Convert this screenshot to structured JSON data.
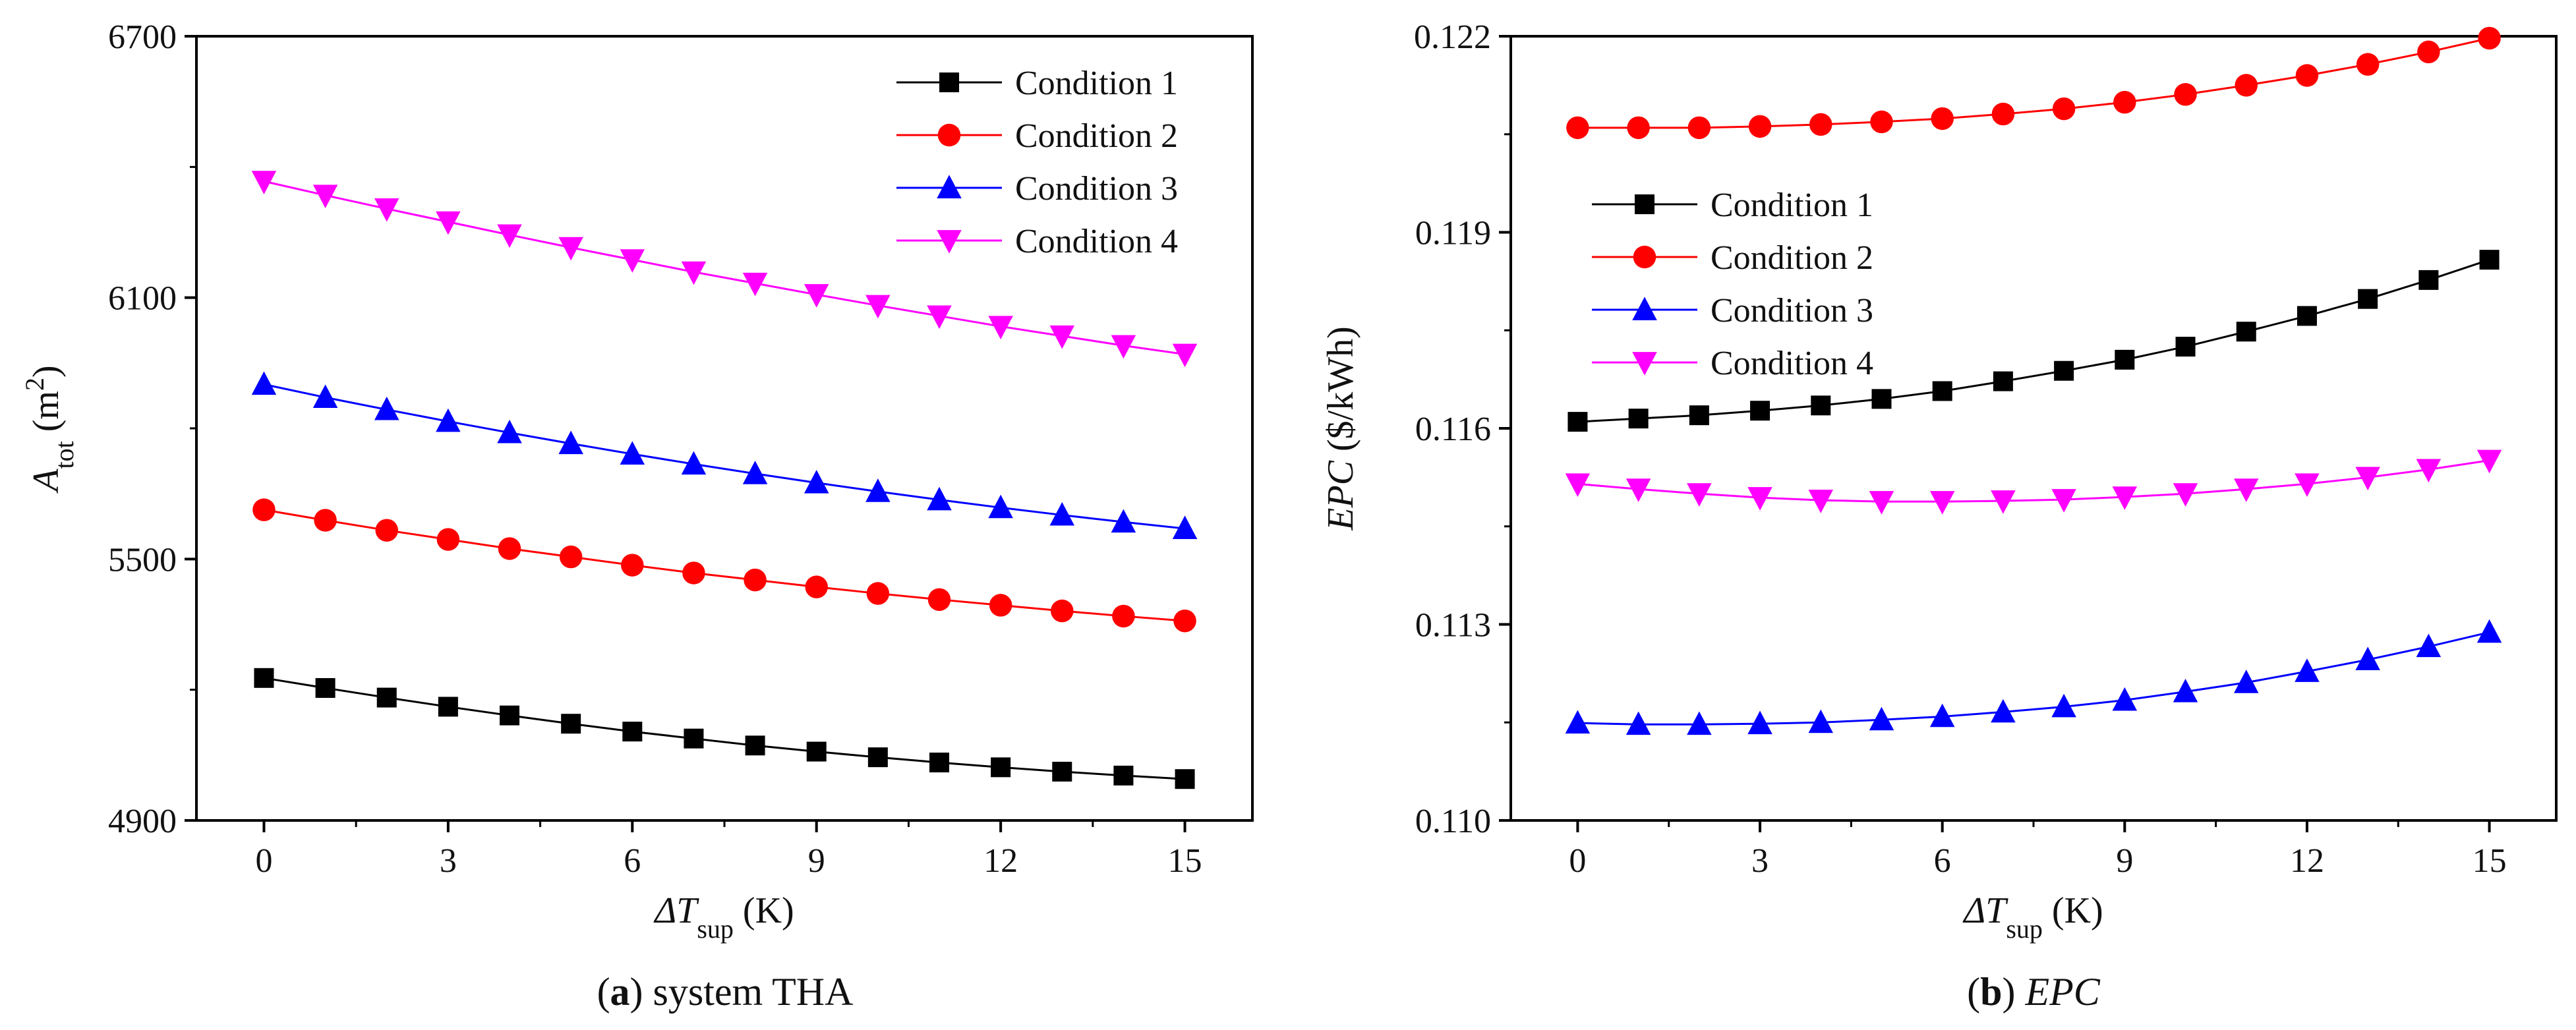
{
  "chart_data": [
    {
      "type": "line",
      "panel": "a",
      "caption": {
        "letter": "a",
        "text": " system THA"
      },
      "xlabel": {
        "main": "ΔT",
        "sub": "sup",
        "unit": " (K)"
      },
      "ylabel": {
        "main": "A",
        "sub": "tot",
        "unit": " (m",
        "sup": "2",
        "close": ")"
      },
      "xlim": [
        -1.1,
        16.1
      ],
      "ylim": [
        4900,
        6700
      ],
      "xticks": [
        0,
        3,
        6,
        9,
        12,
        15
      ],
      "yticks": [
        4900,
        5500,
        6100,
        6700
      ],
      "x": [
        0,
        1,
        2,
        3,
        4,
        5,
        6,
        7,
        8,
        9,
        10,
        11,
        12,
        13,
        14,
        15
      ],
      "legend_position": "top-right",
      "series": [
        {
          "name": "Condition 1",
          "color": "#000000",
          "marker": "square",
          "values": [
            5227,
            5204,
            5182,
            5161,
            5141,
            5122,
            5104,
            5088,
            5072,
            5058,
            5045,
            5033,
            5022,
            5012,
            5003,
            4995
          ]
        },
        {
          "name": "Condition 2",
          "color": "#ff0000",
          "marker": "circle",
          "values": [
            5613,
            5589,
            5566,
            5545,
            5524,
            5505,
            5486,
            5468,
            5452,
            5436,
            5421,
            5407,
            5394,
            5381,
            5369,
            5358
          ]
        },
        {
          "name": "Condition 3",
          "color": "#0000ff",
          "marker": "triangle-up",
          "values": [
            5901,
            5871,
            5843,
            5816,
            5790,
            5765,
            5741,
            5718,
            5696,
            5675,
            5655,
            5636,
            5618,
            5601,
            5585,
            5570
          ]
        },
        {
          "name": "Condition 4",
          "color": "#ff00ff",
          "marker": "triangle-down",
          "values": [
            6367,
            6335,
            6304,
            6274,
            6244,
            6215,
            6187,
            6159,
            6133,
            6107,
            6082,
            6058,
            6034,
            6012,
            5990,
            5970
          ]
        }
      ]
    },
    {
      "type": "line",
      "panel": "b",
      "caption": {
        "letter": "b",
        "text": " EPC"
      },
      "xlabel": {
        "main": "ΔT",
        "sub": "sup",
        "unit": " (K)"
      },
      "ylabel": {
        "main": "EPC",
        "unit": " ($/kWh)"
      },
      "xlim": [
        -1.1,
        16.1
      ],
      "ylim": [
        0.11,
        0.122
      ],
      "xticks": [
        0,
        3,
        6,
        9,
        12,
        15
      ],
      "yticks": [
        0.11,
        0.113,
        0.116,
        0.119,
        0.122
      ],
      "ytick_labels": [
        "0.110",
        "0.113",
        "0.116",
        "0.119",
        "0.122"
      ],
      "x": [
        0,
        1,
        2,
        3,
        4,
        5,
        6,
        7,
        8,
        9,
        10,
        11,
        12,
        13,
        14,
        15
      ],
      "legend_position": "center-left",
      "series": [
        {
          "name": "Condition 1",
          "color": "#000000",
          "marker": "square",
          "values": [
            0.1161,
            0.11615,
            0.1162,
            0.11627,
            0.11635,
            0.11645,
            0.11657,
            0.11672,
            0.11688,
            0.11705,
            0.11725,
            0.11748,
            0.11772,
            0.11798,
            0.11827,
            0.11858
          ]
        },
        {
          "name": "Condition 2",
          "color": "#ff0000",
          "marker": "circle",
          "values": [
            0.1206,
            0.1206,
            0.1206,
            0.12062,
            0.12065,
            0.12069,
            0.12074,
            0.12081,
            0.12089,
            0.12099,
            0.12111,
            0.12125,
            0.1214,
            0.12157,
            0.12176,
            0.12197
          ]
        },
        {
          "name": "Condition 3",
          "color": "#0000ff",
          "marker": "triangle-up",
          "values": [
            0.11149,
            0.11147,
            0.11147,
            0.11148,
            0.1115,
            0.11154,
            0.11159,
            0.11166,
            0.11174,
            0.11184,
            0.11197,
            0.11211,
            0.11228,
            0.11246,
            0.11266,
            0.11288
          ]
        },
        {
          "name": "Condition 4",
          "color": "#ff00ff",
          "marker": "triangle-down",
          "values": [
            0.11515,
            0.11507,
            0.115,
            0.11494,
            0.1149,
            0.11488,
            0.11488,
            0.11489,
            0.11491,
            0.11495,
            0.115,
            0.11507,
            0.11515,
            0.11525,
            0.11537,
            0.11551
          ]
        }
      ]
    }
  ]
}
